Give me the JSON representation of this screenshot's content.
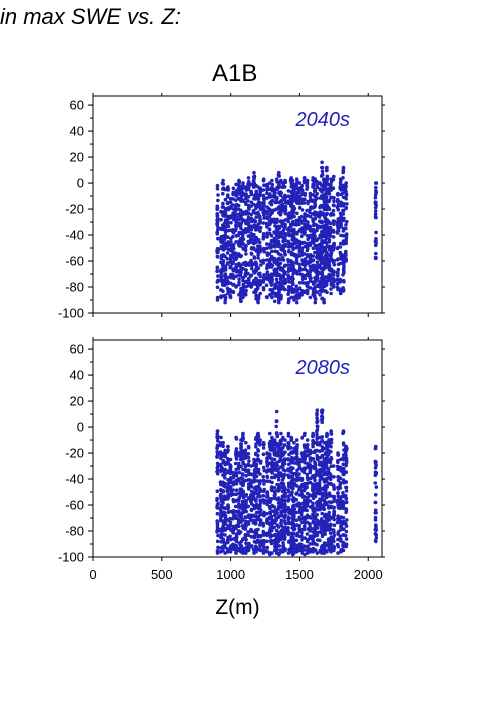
{
  "caption": "in max SWE vs. Z:",
  "scenario": "A1B",
  "colors": {
    "points": "#2222b8",
    "axes": "#000000",
    "background": "#ffffff"
  },
  "chart_data": {
    "type": "scatter",
    "xlabel": "Z(m)",
    "xlim": [
      0,
      2100
    ],
    "ylim": [
      -100,
      67
    ],
    "x_ticks": [
      0,
      500,
      1000,
      1500,
      2000
    ],
    "y_ticks": [
      60,
      40,
      20,
      0,
      -20,
      -40,
      -60,
      -80,
      -100
    ],
    "panels": [
      {
        "label": "2040s",
        "elevation_columns": [
          905,
          930,
          945,
          960,
          980,
          1000,
          1020,
          1040,
          1060,
          1075,
          1090,
          1110,
          1130,
          1150,
          1170,
          1185,
          1200,
          1215,
          1240,
          1265,
          1285,
          1300,
          1320,
          1335,
          1350,
          1365,
          1380,
          1395,
          1420,
          1440,
          1450,
          1460,
          1480,
          1500,
          1520,
          1540,
          1560,
          1580,
          1600,
          1615,
          1630,
          1650,
          1665,
          1680,
          1690,
          1700,
          1715,
          1730,
          1750,
          1780,
          1800,
          1820,
          1840,
          2055
        ],
        "column_top_values": [
          -2,
          -22,
          2,
          -5,
          -3,
          -12,
          -4,
          -1,
          2,
          -3,
          0,
          -3,
          4,
          -1,
          8,
          -2,
          -3,
          -4,
          3,
          -1,
          0,
          2,
          -5,
          3,
          8,
          2,
          0,
          2,
          -6,
          4,
          2,
          -1,
          3,
          0,
          -2,
          4,
          2,
          -8,
          4,
          3,
          1,
          0,
          16,
          3,
          -2,
          12,
          -1,
          3,
          5,
          -8,
          3,
          12,
          0,
          0
        ],
        "column_bottom_values": [
          -90,
          -88,
          -87,
          -92,
          -85,
          -88,
          -84,
          -80,
          -86,
          -91,
          -88,
          -86,
          -79,
          -80,
          -84,
          -89,
          -92,
          -85,
          -82,
          -88,
          -86,
          -88,
          -91,
          -87,
          -92,
          -89,
          -80,
          -82,
          -92,
          -88,
          -84,
          -90,
          -92,
          -88,
          -86,
          -84,
          -85,
          -88,
          -86,
          -92,
          -84,
          -86,
          -89,
          -92,
          -83,
          -84,
          -75,
          -85,
          -80,
          -82,
          -85,
          -83,
          -60,
          -58
        ]
      },
      {
        "label": "2080s",
        "elevation_columns": [
          905,
          930,
          945,
          960,
          980,
          1000,
          1020,
          1040,
          1060,
          1075,
          1090,
          1110,
          1130,
          1150,
          1170,
          1185,
          1200,
          1215,
          1240,
          1265,
          1285,
          1300,
          1320,
          1335,
          1350,
          1365,
          1380,
          1395,
          1420,
          1440,
          1450,
          1460,
          1480,
          1500,
          1520,
          1540,
          1560,
          1580,
          1600,
          1615,
          1630,
          1650,
          1665,
          1680,
          1690,
          1700,
          1715,
          1730,
          1750,
          1780,
          1800,
          1820,
          1840,
          2055
        ],
        "column_top_values": [
          -3,
          -8,
          -12,
          -18,
          -15,
          -25,
          -35,
          -8,
          -20,
          -10,
          -5,
          -12,
          -15,
          -30,
          -25,
          -8,
          -5,
          -10,
          -12,
          -20,
          -5,
          -8,
          -10,
          12,
          -15,
          -5,
          -8,
          -10,
          -5,
          -8,
          -20,
          -12,
          -10,
          -25,
          -8,
          -5,
          -10,
          -18,
          -5,
          -12,
          13,
          -8,
          13,
          -12,
          -20,
          -5,
          -10,
          -3,
          -30,
          -20,
          -25,
          -3,
          -15,
          -15
        ],
        "column_bottom_values": [
          -97,
          -96,
          -95,
          -97,
          -96,
          -96,
          -94,
          -97,
          -95,
          -96,
          -97,
          -97,
          -95,
          -92,
          -97,
          -96,
          -94,
          -95,
          -97,
          -96,
          -98,
          -97,
          -95,
          -97,
          -98,
          -96,
          -96,
          -95,
          -97,
          -96,
          -98,
          -97,
          -96,
          -95,
          -97,
          -98,
          -97,
          -96,
          -96,
          -95,
          -97,
          -96,
          -97,
          -97,
          -95,
          -96,
          -94,
          -96,
          -95,
          -97,
          -96,
          -95,
          -92,
          -88
        ]
      }
    ]
  }
}
